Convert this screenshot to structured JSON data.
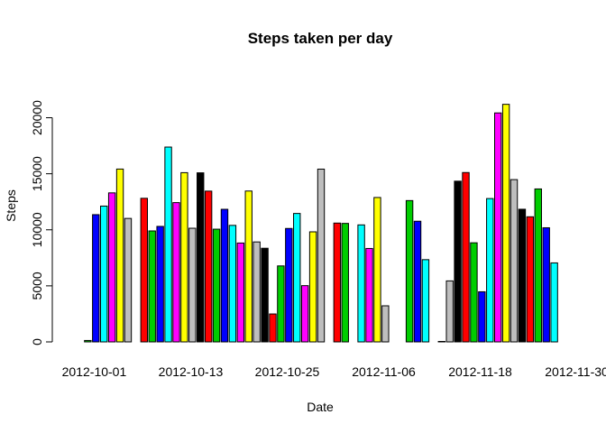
{
  "chart_data": {
    "type": "bar",
    "title": "Steps taken per day",
    "xlabel": "Date",
    "ylabel": "Steps",
    "ylim": [
      0,
      25000
    ],
    "y_ticks": [
      0,
      5000,
      10000,
      15000,
      20000
    ],
    "y_tick_labels": [
      "0",
      "5000",
      "10000",
      "15000",
      "20000"
    ],
    "x_tick_labels": [
      "2012-10-01",
      "2012-10-13",
      "2012-10-25",
      "2012-11-06",
      "2012-11-18",
      "2012-11-30"
    ],
    "x_tick_indices": [
      0,
      12,
      24,
      36,
      48,
      60
    ],
    "categories": [
      "2012-10-01",
      "2012-10-02",
      "2012-10-03",
      "2012-10-04",
      "2012-10-05",
      "2012-10-06",
      "2012-10-07",
      "2012-10-08",
      "2012-10-09",
      "2012-10-10",
      "2012-10-11",
      "2012-10-12",
      "2012-10-13",
      "2012-10-14",
      "2012-10-15",
      "2012-10-16",
      "2012-10-17",
      "2012-10-18",
      "2012-10-19",
      "2012-10-20",
      "2012-10-21",
      "2012-10-22",
      "2012-10-23",
      "2012-10-24",
      "2012-10-25",
      "2012-10-26",
      "2012-10-27",
      "2012-10-28",
      "2012-10-29",
      "2012-10-30",
      "2012-10-31",
      "2012-11-01",
      "2012-11-02",
      "2012-11-03",
      "2012-11-04",
      "2012-11-05",
      "2012-11-06",
      "2012-11-07",
      "2012-11-08",
      "2012-11-09",
      "2012-11-10",
      "2012-11-11",
      "2012-11-12",
      "2012-11-13",
      "2012-11-14",
      "2012-11-15",
      "2012-11-16",
      "2012-11-17",
      "2012-11-18",
      "2012-11-19",
      "2012-11-20",
      "2012-11-21",
      "2012-11-22",
      "2012-11-23",
      "2012-11-24",
      "2012-11-25",
      "2012-11-26",
      "2012-11-27",
      "2012-11-28",
      "2012-11-29",
      "2012-11-30"
    ],
    "values": [
      0,
      126,
      11352,
      12116,
      13294,
      15420,
      11015,
      0,
      12811,
      9900,
      10304,
      17382,
      12426,
      15098,
      10139,
      15084,
      13452,
      10056,
      11829,
      10395,
      8821,
      13460,
      8918,
      8355,
      2492,
      6778,
      10119,
      11458,
      5018,
      9819,
      15414,
      0,
      10600,
      10571,
      0,
      10439,
      8334,
      12883,
      3219,
      0,
      0,
      12608,
      10765,
      7336,
      0,
      41,
      5441,
      14339,
      15110,
      8841,
      4472,
      12787,
      20427,
      21194,
      14478,
      11834,
      11162,
      13646,
      10183,
      7047,
      0
    ],
    "colors_cycle": [
      "#000000",
      "#ff0000",
      "#00cd00",
      "#0000ff",
      "#00ffff",
      "#ff00ff",
      "#ffff00",
      "#bebebe"
    ]
  }
}
